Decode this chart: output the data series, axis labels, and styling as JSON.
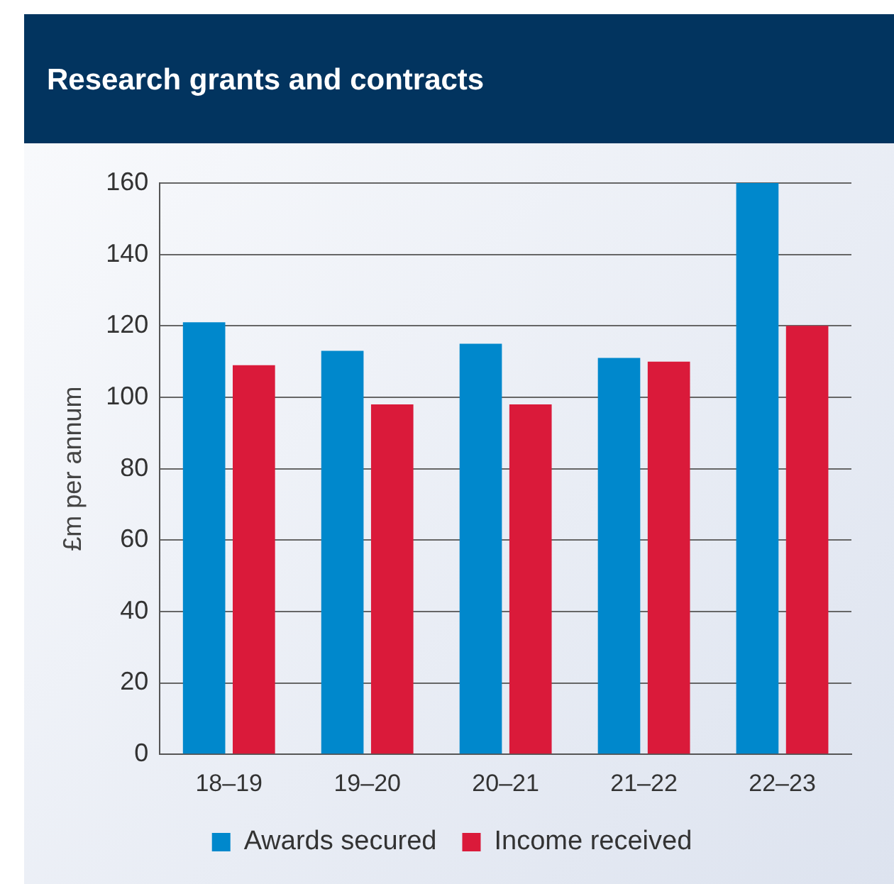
{
  "chart_data": {
    "type": "bar",
    "title": "Research grants and contracts",
    "ylabel": "£m per annum",
    "categories": [
      "18–19",
      "19–20",
      "20–21",
      "21–22",
      "22–23"
    ],
    "series": [
      {
        "name": "Awards secured",
        "color": "#0088cc",
        "values": [
          121,
          113,
          115,
          111,
          160
        ]
      },
      {
        "name": "Income received",
        "color": "#da1a3a",
        "values": [
          109,
          98,
          98,
          110,
          120
        ]
      }
    ],
    "ylim": [
      0,
      160
    ],
    "yticks": [
      0,
      20,
      40,
      60,
      80,
      100,
      120,
      140,
      160
    ],
    "grid": "y",
    "legend": "bottom"
  }
}
